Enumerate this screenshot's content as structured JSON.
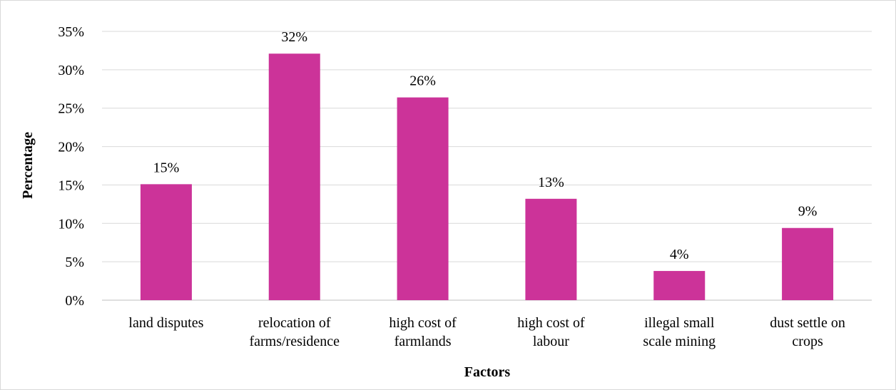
{
  "chart_data": {
    "type": "bar",
    "categories": [
      [
        "land disputes"
      ],
      [
        "relocation of",
        "farms/residence"
      ],
      [
        "high cost of",
        "farmlands"
      ],
      [
        "high cost of",
        "labour"
      ],
      [
        "illegal small",
        "scale mining"
      ],
      [
        "dust settle on",
        "crops"
      ]
    ],
    "values": [
      15.1,
      32.1,
      26.4,
      13.2,
      3.8,
      9.4
    ],
    "data_labels": [
      "15%",
      "32%",
      "26%",
      "13%",
      "4%",
      "9%"
    ],
    "xlabel": "Factors",
    "ylabel": "Percentage",
    "ylim": [
      0,
      35
    ],
    "yticks": [
      0,
      5,
      10,
      15,
      20,
      25,
      30,
      35
    ],
    "ytick_labels": [
      "0%",
      "5%",
      "10%",
      "15%",
      "20%",
      "25%",
      "30%",
      "35%"
    ],
    "bar_color": "#cc3399",
    "grid": true,
    "legend": "none"
  }
}
